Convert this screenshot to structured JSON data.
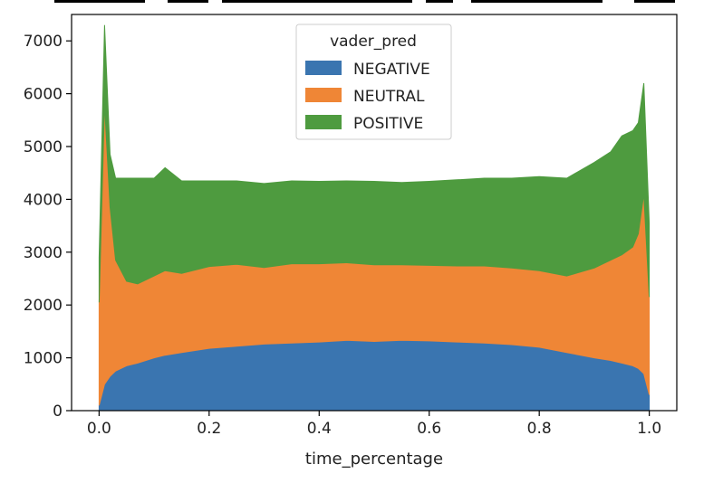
{
  "chart_data": {
    "type": "area",
    "stacked": true,
    "xlabel": "time_percentage",
    "ylabel": "",
    "xlim": [
      -0.05,
      1.05
    ],
    "ylim": [
      0,
      7500
    ],
    "xticks": [
      0.0,
      0.2,
      0.4,
      0.6,
      0.8,
      1.0
    ],
    "xtick_labels": [
      "0.0",
      "0.2",
      "0.4",
      "0.6",
      "0.8",
      "1.0"
    ],
    "yticks": [
      0,
      1000,
      2000,
      3000,
      4000,
      5000,
      6000,
      7000
    ],
    "ytick_labels": [
      "0",
      "1000",
      "2000",
      "3000",
      "4000",
      "5000",
      "6000",
      "7000"
    ],
    "legend": {
      "title": "vader_pred",
      "placement": "upper center"
    },
    "x": [
      0.0,
      0.01,
      0.02,
      0.03,
      0.05,
      0.07,
      0.1,
      0.12,
      0.15,
      0.2,
      0.25,
      0.3,
      0.35,
      0.4,
      0.45,
      0.5,
      0.55,
      0.6,
      0.65,
      0.7,
      0.75,
      0.8,
      0.85,
      0.9,
      0.93,
      0.95,
      0.97,
      0.98,
      0.99,
      1.0
    ],
    "series": [
      {
        "name": "NEGATIVE",
        "color": "#3a75b0",
        "values": [
          100,
          500,
          650,
          750,
          850,
          900,
          1000,
          1050,
          1100,
          1180,
          1220,
          1260,
          1280,
          1300,
          1330,
          1310,
          1330,
          1320,
          1300,
          1280,
          1250,
          1200,
          1100,
          1000,
          950,
          900,
          850,
          800,
          700,
          300
        ]
      },
      {
        "name": "NEUTRAL",
        "color": "#ef8636",
        "values": [
          1950,
          5300,
          3200,
          2100,
          1600,
          1500,
          1550,
          1600,
          1500,
          1550,
          1550,
          1450,
          1500,
          1480,
          1470,
          1450,
          1430,
          1430,
          1440,
          1460,
          1450,
          1450,
          1450,
          1700,
          1900,
          2050,
          2250,
          2550,
          3400,
          1850
        ]
      },
      {
        "name": "POSITIVE",
        "color": "#4e9b3f",
        "values": [
          850,
          1500,
          1000,
          1550,
          1950,
          2000,
          1850,
          1950,
          1750,
          1620,
          1580,
          1590,
          1570,
          1560,
          1550,
          1580,
          1560,
          1590,
          1630,
          1660,
          1700,
          1780,
          1850,
          2000,
          2050,
          2250,
          2200,
          2100,
          2100,
          1400
        ]
      }
    ]
  }
}
